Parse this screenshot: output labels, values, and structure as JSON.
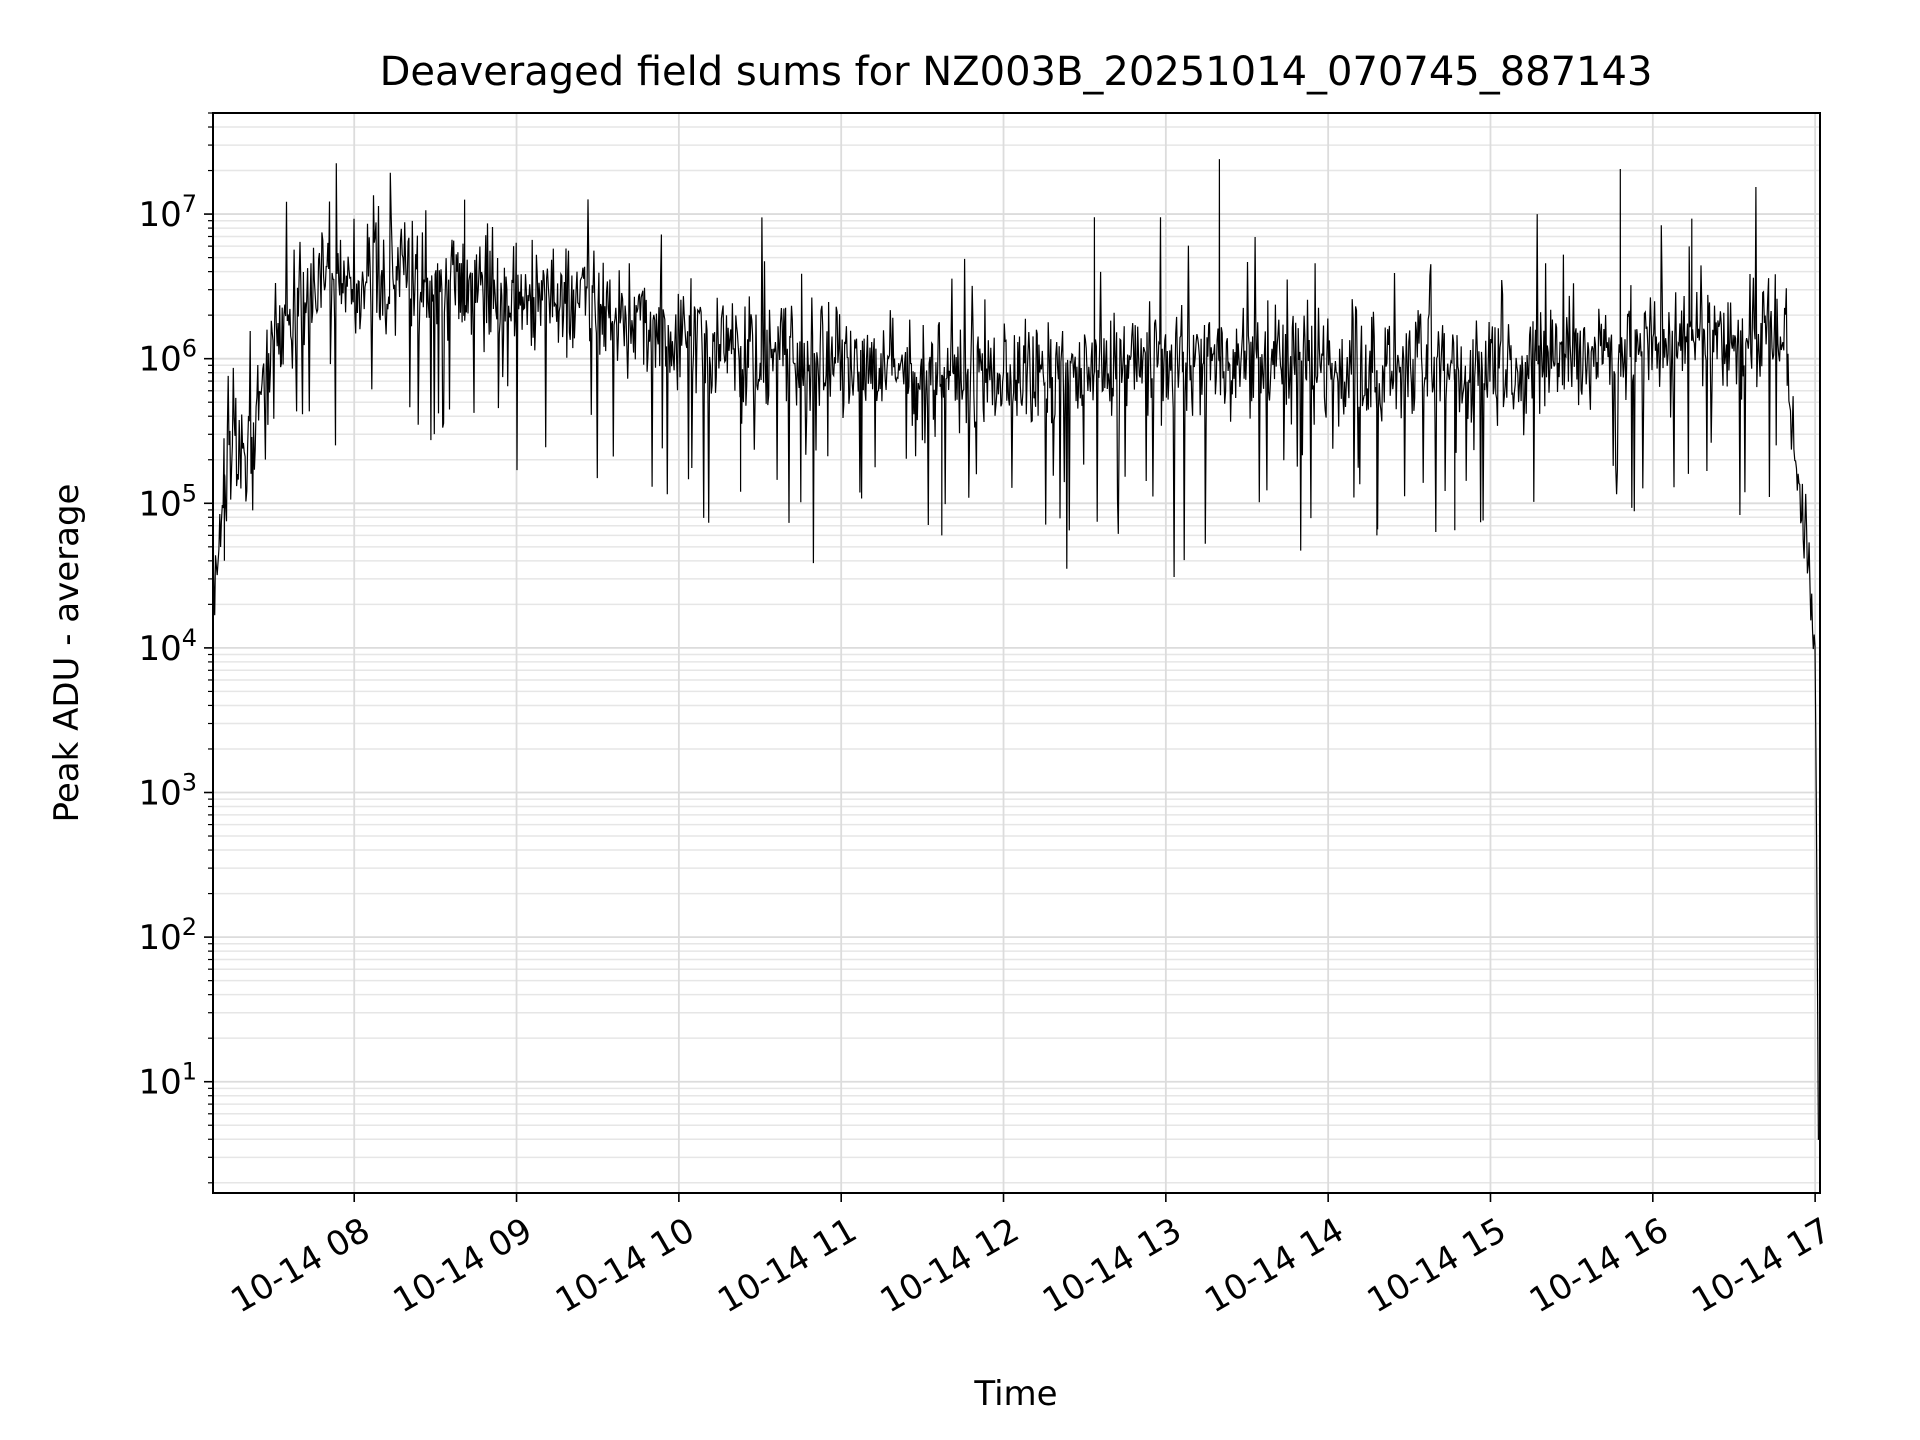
{
  "chart_data": {
    "type": "line",
    "title": "Deaveraged field sums for NZ003B_20251014_070745_887143",
    "xlabel": "Time",
    "ylabel": "Peak ADU - average",
    "yscale": "log",
    "ylim": [
      1.7,
      50000000
    ],
    "xlim_hours": [
      7.13,
      17.03
    ],
    "grid": true,
    "line_color": "#000000",
    "x_ticks": [
      {
        "hour": 8,
        "label": "10-14 08"
      },
      {
        "hour": 9,
        "label": "10-14 09"
      },
      {
        "hour": 10,
        "label": "10-14 10"
      },
      {
        "hour": 11,
        "label": "10-14 11"
      },
      {
        "hour": 12,
        "label": "10-14 12"
      },
      {
        "hour": 13,
        "label": "10-14 13"
      },
      {
        "hour": 14,
        "label": "10-14 14"
      },
      {
        "hour": 15,
        "label": "10-14 15"
      },
      {
        "hour": 16,
        "label": "10-14 16"
      },
      {
        "hour": 17,
        "label": "10-14 17"
      }
    ],
    "y_ticks": [
      {
        "exp": 1,
        "base": "10",
        "sup": "1"
      },
      {
        "exp": 2,
        "base": "10",
        "sup": "2"
      },
      {
        "exp": 3,
        "base": "10",
        "sup": "3"
      },
      {
        "exp": 4,
        "base": "10",
        "sup": "4"
      },
      {
        "exp": 5,
        "base": "10",
        "sup": "5"
      },
      {
        "exp": 6,
        "base": "10",
        "sup": "6"
      },
      {
        "exp": 7,
        "base": "10",
        "sup": "7"
      }
    ],
    "series": [
      {
        "name": "Deaveraged field sum",
        "baseline_log10": [
          [
            7.13,
            4.4
          ],
          [
            7.2,
            5.2
          ],
          [
            7.35,
            5.4
          ],
          [
            7.5,
            6.15
          ],
          [
            7.7,
            6.5
          ],
          [
            8.0,
            6.55
          ],
          [
            8.5,
            6.5
          ],
          [
            9.0,
            6.45
          ],
          [
            9.5,
            6.35
          ],
          [
            10.0,
            6.15
          ],
          [
            10.5,
            6.05
          ],
          [
            11.0,
            5.95
          ],
          [
            11.5,
            5.9
          ],
          [
            12.0,
            5.85
          ],
          [
            12.5,
            5.9
          ],
          [
            13.0,
            5.95
          ],
          [
            13.5,
            6.0
          ],
          [
            14.0,
            5.95
          ],
          [
            14.5,
            5.9
          ],
          [
            15.0,
            5.95
          ],
          [
            15.5,
            6.05
          ],
          [
            16.0,
            6.1
          ],
          [
            16.5,
            6.15
          ],
          [
            16.8,
            6.2
          ],
          [
            16.85,
            5.5
          ],
          [
            16.95,
            4.8
          ],
          [
            17.0,
            4.0
          ],
          [
            17.01,
            2.5
          ],
          [
            17.02,
            0.6
          ],
          [
            17.04,
            0.6
          ]
        ],
        "noise_log10": 0.35,
        "spikes": [
          {
            "hour": 8.68,
            "value": 12600000
          },
          {
            "hour": 13.33,
            "value": 24000000
          },
          {
            "hour": 15.8,
            "value": 20500000
          },
          {
            "hour": 12.56,
            "value": 9500000
          },
          {
            "hour": 16.24,
            "value": 9300000
          }
        ],
        "dips": [
          {
            "hour": 7.2,
            "value": 40000
          },
          {
            "hour": 11.62,
            "value": 60000
          },
          {
            "hour": 14.3,
            "value": 60000
          },
          {
            "hour": 14.78,
            "value": 65000
          },
          {
            "hour": 10.38,
            "value": 120000
          }
        ],
        "tail": [
          {
            "hour": 17.02,
            "value": 4
          },
          {
            "hour": 17.04,
            "value": 4
          }
        ]
      }
    ]
  }
}
